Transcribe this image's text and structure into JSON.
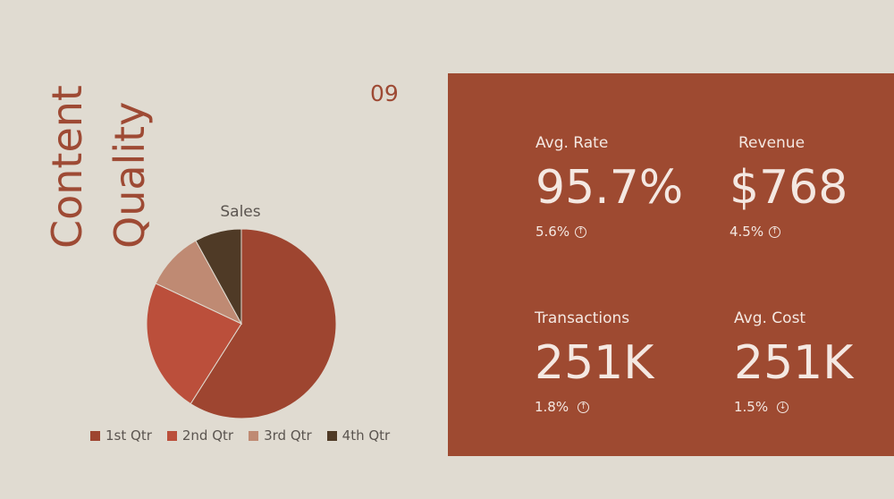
{
  "slide": {
    "title_line1": "Content",
    "title_line2": "Quality",
    "number": "09"
  },
  "chart_data": {
    "type": "pie",
    "title": "Sales",
    "categories": [
      "1st Qtr",
      "2nd Qtr",
      "3rd Qtr",
      "4th Qtr"
    ],
    "values": [
      59,
      23,
      10,
      8
    ],
    "colors": [
      "#9e4530",
      "#bb4f3b",
      "#bf8a73",
      "#4f3a26"
    ],
    "legend_position": "bottom"
  },
  "kpis": [
    {
      "label": "Avg. Rate",
      "value": "95.7%",
      "change": "5.6%",
      "direction": "up",
      "icon": "arrow-up-circle-icon"
    },
    {
      "label": "Revenue",
      "value": "$768",
      "change": "4.5%",
      "direction": "up",
      "icon": "arrow-up-circle-icon"
    },
    {
      "label": "Transactions",
      "value": "251K",
      "change": "1.8%",
      "direction": "up",
      "icon": "arrow-up-circle-icon"
    },
    {
      "label": "Avg. Cost",
      "value": "251K",
      "change": "1.5%",
      "direction": "down",
      "icon": "arrow-down-circle-icon"
    }
  ],
  "colors": {
    "background": "#e0dbd1",
    "accent": "#9e4a31",
    "panel_text": "#f4e8e2"
  }
}
